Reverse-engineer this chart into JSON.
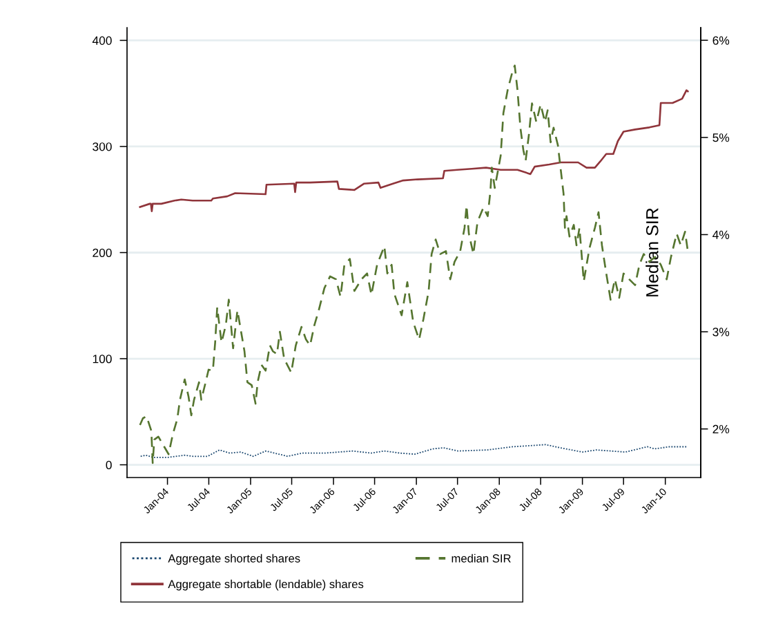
{
  "chart_data": {
    "type": "line",
    "xlim": [
      "2003-07-07",
      "2010-06-06"
    ],
    "xticks": [
      {
        "value": "2004-01",
        "label": "Jan-04"
      },
      {
        "value": "2004-07",
        "label": "Jul-04"
      },
      {
        "value": "2005-01",
        "label": "Jan-05"
      },
      {
        "value": "2005-07",
        "label": "Jul-05"
      },
      {
        "value": "2006-01",
        "label": "Jan-06"
      },
      {
        "value": "2006-07",
        "label": "Jul-06"
      },
      {
        "value": "2007-01",
        "label": "Jan-07"
      },
      {
        "value": "2007-07",
        "label": "Jul-07"
      },
      {
        "value": "2008-01",
        "label": "Jan-08"
      },
      {
        "value": "2008-07",
        "label": "Jul-08"
      },
      {
        "value": "2009-01",
        "label": "Jan-09"
      },
      {
        "value": "2009-07",
        "label": "Jul-09"
      },
      {
        "value": "2010-01",
        "label": "Jan-10"
      }
    ],
    "ylim": [
      -12,
      412
    ],
    "yticks": [
      0,
      100,
      200,
      300,
      400
    ],
    "y2lim": [
      1.5,
      6.13
    ],
    "y2ticks": [
      {
        "value": 2,
        "label": "2%"
      },
      {
        "value": 3,
        "label": "3%"
      },
      {
        "value": 4,
        "label": "4%"
      },
      {
        "value": 5,
        "label": "5%"
      },
      {
        "value": 6,
        "label": "6%"
      }
    ],
    "y2label": "Median SIR",
    "grid": "y",
    "legend": "bottom",
    "series": [
      {
        "name": "Aggregate shorted shares",
        "color": "#1a476f",
        "line_style": "dotted",
        "x": [
          "2003-09-05",
          "2003-09-28",
          "2003-10-30",
          "2004-01-03",
          "2004-03-14",
          "2004-04-23",
          "2004-06-26",
          "2004-08-17",
          "2004-10-01",
          "2004-11-18",
          "2005-01-13",
          "2005-03-09",
          "2005-06-13",
          "2005-08-16",
          "2005-11-21",
          "2006-03-27",
          "2006-06-16",
          "2006-08-11",
          "2006-10-22",
          "2006-12-25",
          "2007-03-14",
          "2007-05-01",
          "2007-07-04",
          "2007-11-10",
          "2008-03-01",
          "2008-07-23",
          "2008-09-26",
          "2009-01-01",
          "2009-03-03",
          "2009-07-09",
          "2009-10-14",
          "2009-11-15",
          "2010-01-19",
          "2010-03-22",
          "2010-04-10"
        ],
        "values": [
          8,
          9,
          7,
          7,
          9,
          8,
          8,
          14,
          11,
          12,
          8,
          13,
          8,
          11,
          11,
          13,
          11,
          13,
          11,
          10,
          15,
          16,
          13,
          14,
          17,
          19,
          16,
          12,
          14,
          12,
          17,
          15,
          17,
          17,
          17
        ]
      },
      {
        "name": "Aggregate shortable (lendable) shares",
        "color": "#90353b",
        "line_style": "solid",
        "x": [
          "2003-09-02",
          "2003-10-15",
          "2003-10-20",
          "2003-10-24",
          "2003-10-28",
          "2003-12-05",
          "2004-02-01",
          "2004-03-02",
          "2004-04-21",
          "2004-07-12",
          "2004-07-19",
          "2004-09-20",
          "2004-10-25",
          "2005-03-08",
          "2005-03-12",
          "2005-07-12",
          "2005-07-16",
          "2005-07-21",
          "2005-09-20",
          "2006-01-18",
          "2006-01-25",
          "2006-04-03",
          "2006-05-16",
          "2006-07-18",
          "2006-07-27",
          "2006-09-20",
          "2006-11-04",
          "2007-01-06",
          "2007-04-28",
          "2007-05-04",
          "2007-06-30",
          "2007-09-02",
          "2007-11-04",
          "2008-01-07",
          "2008-03-21",
          "2008-05-17",
          "2008-06-05",
          "2008-08-08",
          "2008-09-28",
          "2008-12-13",
          "2009-01-19",
          "2009-02-25",
          "2009-03-21",
          "2009-04-16",
          "2009-05-17",
          "2009-06-06",
          "2009-07-01",
          "2009-08-21",
          "2009-10-23",
          "2009-12-06",
          "2009-12-12",
          "2010-02-02",
          "2010-03-16",
          "2010-04-04",
          "2010-04-10"
        ],
        "values": [
          243,
          246,
          246,
          239,
          246,
          246,
          249,
          250,
          249,
          249,
          251,
          253,
          256,
          255,
          264,
          265,
          257,
          266,
          266,
          267,
          260,
          259,
          265,
          266,
          261,
          265,
          268,
          269,
          270,
          277,
          278,
          279,
          280,
          278,
          278,
          274,
          281,
          283,
          285,
          285,
          280,
          280,
          286,
          293,
          293,
          305,
          314,
          316,
          318,
          320,
          341,
          341,
          345,
          353,
          352
        ]
      },
      {
        "name": "median SIR",
        "color": "#55752f",
        "line_style": "dashed",
        "axis": "y2",
        "x": [
          "2003-09-02",
          "2003-09-15",
          "2003-10-01",
          "2003-10-22",
          "2003-10-28",
          "2003-11-04",
          "2003-11-22",
          "2003-12-17",
          "2004-01-06",
          "2004-01-25",
          "2004-02-13",
          "2004-02-25",
          "2004-03-17",
          "2004-04-03",
          "2004-04-15",
          "2004-04-27",
          "2004-05-19",
          "2004-05-29",
          "2004-06-17",
          "2004-06-30",
          "2004-07-19",
          "2004-07-29",
          "2004-08-07",
          "2004-08-26",
          "2004-09-14",
          "2004-09-27",
          "2004-10-16",
          "2004-11-04",
          "2004-12-05",
          "2004-12-18",
          "2005-01-06",
          "2005-01-23",
          "2005-02-01",
          "2005-02-18",
          "2005-03-08",
          "2005-03-27",
          "2005-04-09",
          "2005-04-27",
          "2005-05-10",
          "2005-05-29",
          "2005-06-29",
          "2005-07-19",
          "2005-08-13",
          "2005-09-02",
          "2005-09-20",
          "2005-10-09",
          "2005-10-28",
          "2005-11-22",
          "2005-12-17",
          "2006-01-12",
          "2006-02-01",
          "2006-02-18",
          "2006-03-14",
          "2006-04-03",
          "2006-05-04",
          "2006-05-29",
          "2006-06-17",
          "2006-07-12",
          "2006-08-13",
          "2006-08-26",
          "2006-09-14",
          "2006-09-26",
          "2006-10-28",
          "2006-11-22",
          "2006-12-18",
          "2007-01-13",
          "2007-02-01",
          "2007-02-24",
          "2007-03-09",
          "2007-03-27",
          "2007-04-16",
          "2007-05-11",
          "2007-05-30",
          "2007-06-18",
          "2007-07-13",
          "2007-08-01",
          "2007-08-10",
          "2007-08-20",
          "2007-09-09",
          "2007-09-27",
          "2007-10-23",
          "2007-11-11",
          "2007-11-23",
          "2007-11-29",
          "2007-12-12",
          "2008-01-07",
          "2008-01-19",
          "2008-02-07",
          "2008-02-26",
          "2008-03-09",
          "2008-03-21",
          "2008-04-03",
          "2008-04-16",
          "2008-04-26",
          "2008-05-11",
          "2008-05-24",
          "2008-06-12",
          "2008-07-01",
          "2008-07-20",
          "2008-08-01",
          "2008-08-14",
          "2008-08-27",
          "2008-09-15",
          "2008-09-28",
          "2008-10-10",
          "2008-10-16",
          "2008-10-23",
          "2008-11-05",
          "2008-11-24",
          "2008-12-06",
          "2008-12-19",
          "2009-01-07",
          "2009-02-01",
          "2009-02-25",
          "2009-03-13",
          "2009-03-28",
          "2009-04-16",
          "2009-05-05",
          "2009-05-24",
          "2009-06-12",
          "2009-07-01",
          "2009-07-26",
          "2009-08-21",
          "2009-09-09",
          "2009-09-28",
          "2009-10-23",
          "2009-11-17",
          "2009-12-12",
          "2010-01-07",
          "2010-01-26",
          "2010-02-20",
          "2010-03-10",
          "2010-03-29",
          "2010-04-10"
        ],
        "values": [
          2.04,
          2.11,
          2.13,
          1.98,
          1.65,
          1.89,
          1.92,
          1.82,
          1.74,
          1.95,
          2.1,
          2.3,
          2.51,
          2.33,
          2.14,
          2.3,
          2.48,
          2.3,
          2.48,
          2.61,
          2.6,
          2.89,
          3.25,
          2.89,
          3.07,
          3.33,
          2.83,
          3.22,
          2.8,
          2.48,
          2.45,
          2.26,
          2.48,
          2.66,
          2.6,
          2.86,
          2.8,
          2.77,
          3.0,
          2.72,
          2.58,
          2.86,
          3.05,
          2.92,
          2.86,
          3.07,
          3.22,
          3.45,
          3.57,
          3.54,
          3.36,
          3.69,
          3.75,
          3.42,
          3.54,
          3.6,
          3.38,
          3.69,
          3.88,
          3.6,
          3.69,
          3.39,
          3.17,
          3.51,
          3.1,
          2.92,
          3.13,
          3.42,
          3.8,
          3.95,
          3.8,
          3.83,
          3.54,
          3.72,
          3.83,
          4.07,
          4.3,
          4.01,
          3.8,
          4.13,
          4.28,
          4.19,
          4.45,
          4.69,
          4.48,
          4.81,
          5.25,
          5.49,
          5.66,
          5.74,
          5.49,
          5.1,
          4.87,
          4.76,
          5.04,
          5.35,
          5.16,
          5.34,
          5.16,
          5.28,
          4.95,
          5.1,
          4.92,
          4.66,
          4.42,
          4.07,
          4.19,
          3.98,
          4.1,
          3.89,
          4.07,
          3.52,
          3.86,
          4.07,
          4.23,
          3.89,
          3.6,
          3.33,
          3.54,
          3.35,
          3.6,
          3.54,
          3.48,
          3.69,
          3.8,
          3.72,
          3.77,
          3.69,
          3.54,
          3.77,
          4.01,
          3.89,
          4.03,
          3.83
        ]
      }
    ]
  }
}
